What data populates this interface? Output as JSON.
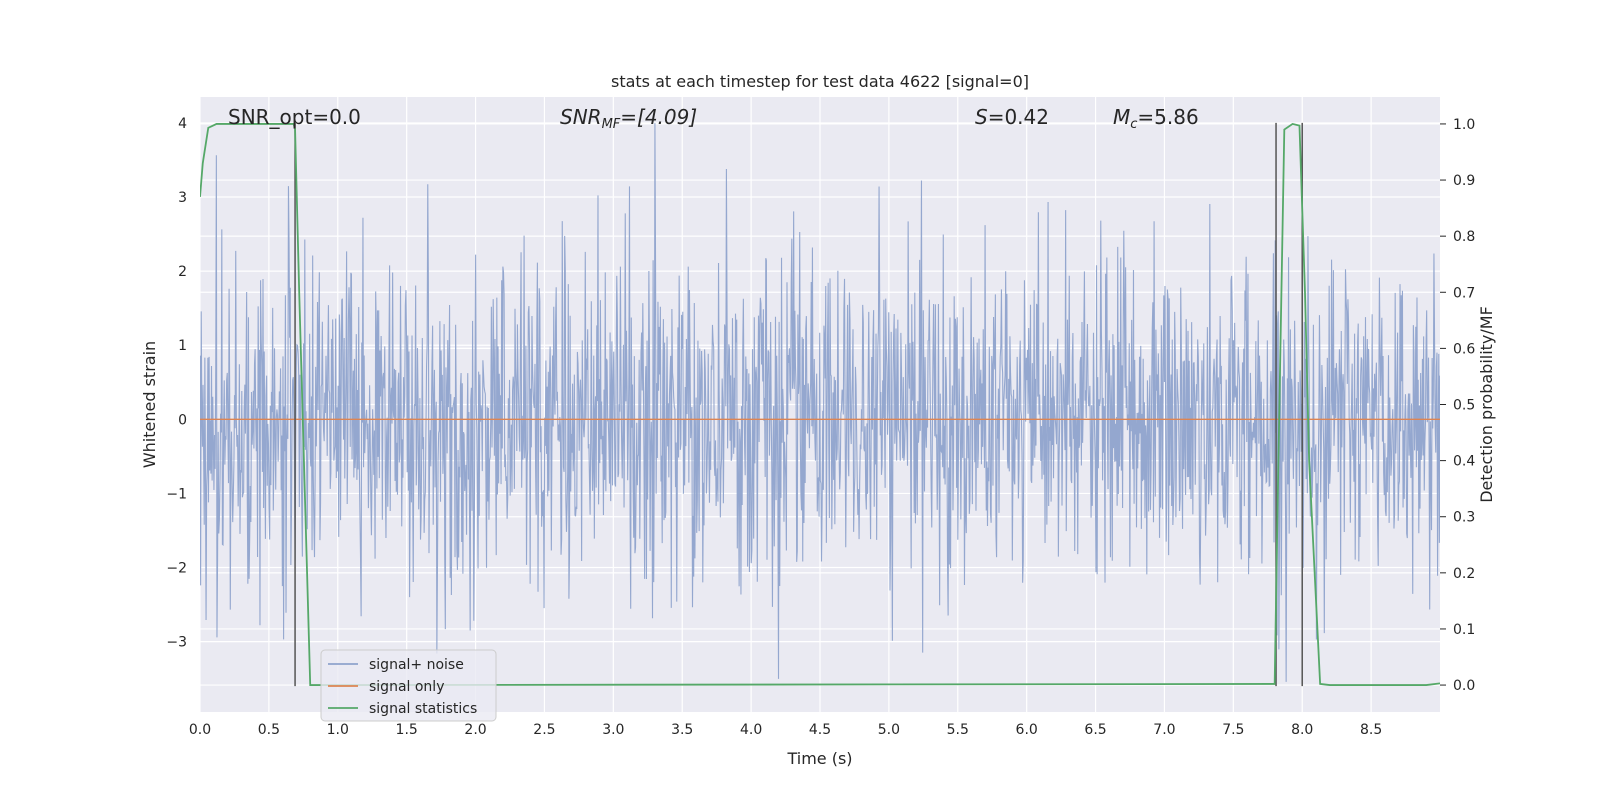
{
  "chart_data": {
    "type": "line",
    "title": "stats at each timestep for test data 4622 [signal=0]",
    "xlabel": "Time (s)",
    "ylabel": "Whitened strain",
    "ylabel_right": "Detection probability/MF",
    "xlim": [
      0.0,
      9.0
    ],
    "ylim": [
      -3.95,
      4.35
    ],
    "ylim_right": [
      -0.048,
      1.048
    ],
    "grid": true,
    "x_ticks": [
      "0.0",
      "0.5",
      "1.0",
      "1.5",
      "2.0",
      "2.5",
      "3.0",
      "3.5",
      "4.0",
      "4.5",
      "5.0",
      "5.5",
      "6.0",
      "6.5",
      "7.0",
      "7.5",
      "8.0",
      "8.5"
    ],
    "y_ticks": [
      "4",
      "3",
      "2",
      "1",
      "0",
      "−1",
      "−2",
      "−3"
    ],
    "y_ticks_right": [
      "1.0",
      "0.9",
      "0.8",
      "0.7",
      "0.6",
      "0.5",
      "0.4",
      "0.3",
      "0.2",
      "0.1",
      "0.0"
    ],
    "annotations": {
      "snr_opt": "SNR_opt=0.0",
      "snr_mf": [
        "SNR",
        "MF",
        "=[4.09]"
      ],
      "s_stat": [
        "S",
        "=0.42"
      ],
      "mc": [
        "M",
        "c",
        "=5.86"
      ]
    },
    "legend": {
      "position": "lower-left",
      "entries": [
        "signal+ noise",
        "signal only",
        "signal statistics"
      ]
    },
    "colors": {
      "noise": "#8fa3cc",
      "signal": "#dd8452",
      "stats": "#55a868",
      "vline": "#555555",
      "plot_bg": "#eaeaf2",
      "grid": "#ffffff"
    },
    "series": [
      {
        "name": "signal+ noise",
        "style": "dense-noise",
        "x_range": [
          0.0,
          9.0
        ],
        "samples": 2048,
        "core_band": [
          -1.2,
          1.5
        ],
        "typical_peaks": [
          2.9,
          -2.6
        ],
        "max": 4.0,
        "min": -3.6
      },
      {
        "name": "signal only",
        "x": [
          0.0,
          9.0
        ],
        "y": [
          0.0,
          0.0
        ]
      },
      {
        "name": "signal statistics",
        "axis": "right",
        "x": [
          0.0,
          0.02,
          0.06,
          0.12,
          0.5,
          0.68,
          0.69,
          0.72,
          0.8,
          1.0,
          7.8,
          7.82,
          7.87,
          7.93,
          7.98,
          8.02,
          8.05,
          8.13,
          8.2,
          8.5,
          8.9,
          9.0
        ],
        "y": [
          0.87,
          0.93,
          0.993,
          1.0,
          1.0,
          1.0,
          0.99,
          0.7,
          0.0,
          0.0,
          0.002,
          0.3,
          0.99,
          1.0,
          0.997,
          0.7,
          0.4,
          0.002,
          0.0,
          0.0,
          0.0,
          0.003
        ]
      }
    ],
    "vlines": [
      0.69,
      7.81,
      8.0
    ],
    "vline_range": [
      -3.6,
      4.0
    ]
  }
}
